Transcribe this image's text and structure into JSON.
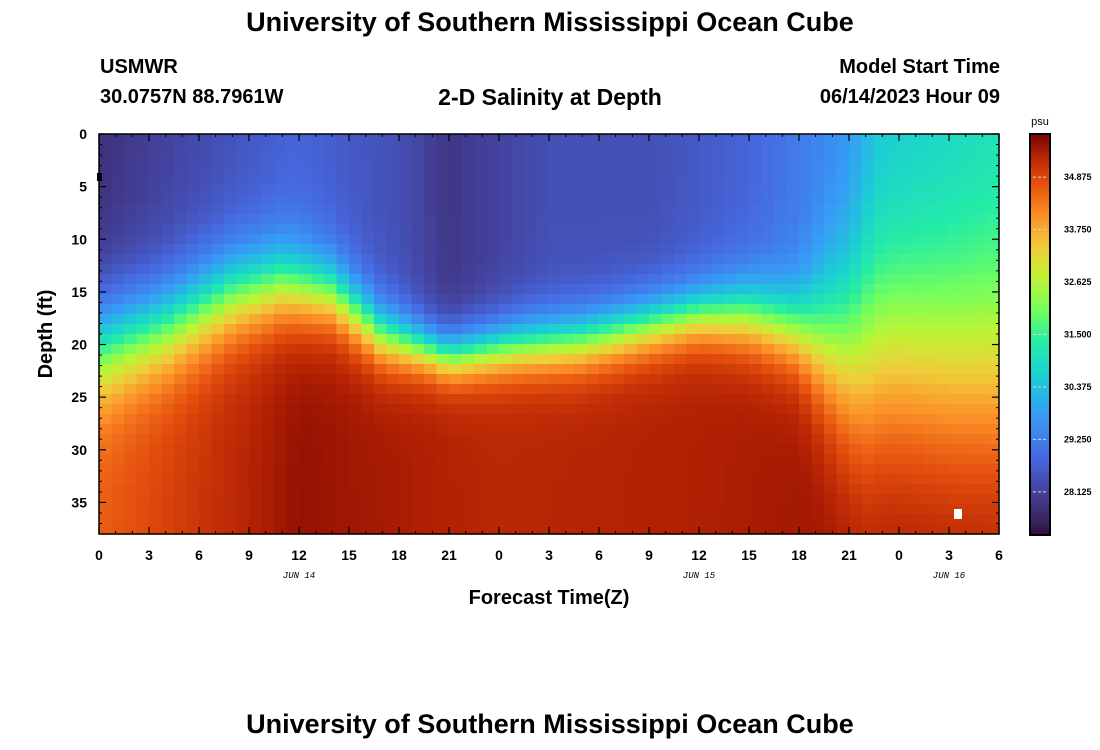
{
  "page": {
    "title": "University of Southern Mississippi Ocean Cube",
    "title_bottom": "University of Southern Mississippi Ocean Cube"
  },
  "header": {
    "station": "USMWR",
    "location": "30.0757N  88.7961W",
    "subtitle": "2-D Salinity at Depth",
    "model_start_label": "Model Start Time",
    "model_start_value": "06/14/2023 Hour 09"
  },
  "chart_data": {
    "type": "heatmap",
    "title": "2-D Salinity at Depth",
    "xlabel": "Forecast Time(Z)",
    "ylabel": "Depth (ft)",
    "x_range_hours": [
      0,
      54
    ],
    "y_range_ft": [
      0,
      38
    ],
    "x_tick_labels": [
      "0",
      "3",
      "6",
      "9",
      "12",
      "15",
      "18",
      "21",
      "0",
      "3",
      "6",
      "9",
      "12",
      "15",
      "18",
      "21",
      "0",
      "3",
      "6"
    ],
    "y_ticks": [
      0,
      5,
      10,
      15,
      20,
      25,
      30,
      35
    ],
    "date_labels": [
      {
        "text": "JUN 14",
        "hour": 12
      },
      {
        "text": "JUN 15",
        "hour": 36
      },
      {
        "text": "JUN 16",
        "hour": 51
      }
    ],
    "colorbar": {
      "unit": "psu",
      "range": [
        27.2,
        35.8
      ],
      "ticks": [
        28.125,
        29.25,
        30.375,
        31.5,
        32.625,
        33.75,
        34.875
      ],
      "tick_labels": [
        "28.125",
        "29.250",
        "30.375",
        "31.500",
        "32.625",
        "33.750",
        "34.875"
      ]
    },
    "surface_salinity_psu": [
      {
        "hour": 0,
        "value": 27.8
      },
      {
        "hour": 6,
        "value": 28.3
      },
      {
        "hour": 12,
        "value": 28.8
      },
      {
        "hour": 18,
        "value": 28.4
      },
      {
        "hour": 21,
        "value": 27.9
      },
      {
        "hour": 27,
        "value": 28.4
      },
      {
        "hour": 33,
        "value": 28.4
      },
      {
        "hour": 39,
        "value": 28.8
      },
      {
        "hour": 45,
        "value": 29.6
      },
      {
        "hour": 47,
        "value": 30.4
      },
      {
        "hour": 54,
        "value": 30.9
      }
    ],
    "bottom_salinity_psu": [
      {
        "hour": 0,
        "value": 34.6
      },
      {
        "hour": 12,
        "value": 35.6
      },
      {
        "hour": 24,
        "value": 35.3
      },
      {
        "hour": 36,
        "value": 35.4
      },
      {
        "hour": 48,
        "value": 35.6
      },
      {
        "hour": 54,
        "value": 35.6
      }
    ],
    "halocline_depth_ft": [
      {
        "hour": 0,
        "value": 20
      },
      {
        "hour": 4,
        "value": 18
      },
      {
        "hour": 8,
        "value": 15
      },
      {
        "hour": 11,
        "value": 14
      },
      {
        "hour": 14,
        "value": 15
      },
      {
        "hour": 17,
        "value": 19
      },
      {
        "hour": 21,
        "value": 21
      },
      {
        "hour": 25,
        "value": 20
      },
      {
        "hour": 29,
        "value": 19.5
      },
      {
        "hour": 33,
        "value": 18
      },
      {
        "hour": 36,
        "value": 17
      },
      {
        "hour": 39,
        "value": 17
      },
      {
        "hour": 42,
        "value": 18.5
      },
      {
        "hour": 45,
        "value": 20.5
      },
      {
        "hour": 48,
        "value": 20.5
      },
      {
        "hour": 51,
        "value": 21.5
      },
      {
        "hour": 54,
        "value": 22
      }
    ],
    "halocline_thickness_ft": [
      {
        "hour": 0,
        "value": 6
      },
      {
        "hour": 11,
        "value": 5
      },
      {
        "hour": 20,
        "value": 3
      },
      {
        "hour": 28,
        "value": 3.5
      },
      {
        "hour": 36,
        "value": 3.5
      },
      {
        "hour": 42,
        "value": 5
      },
      {
        "hour": 46,
        "value": 13
      },
      {
        "hour": 54,
        "value": 14
      }
    ]
  }
}
